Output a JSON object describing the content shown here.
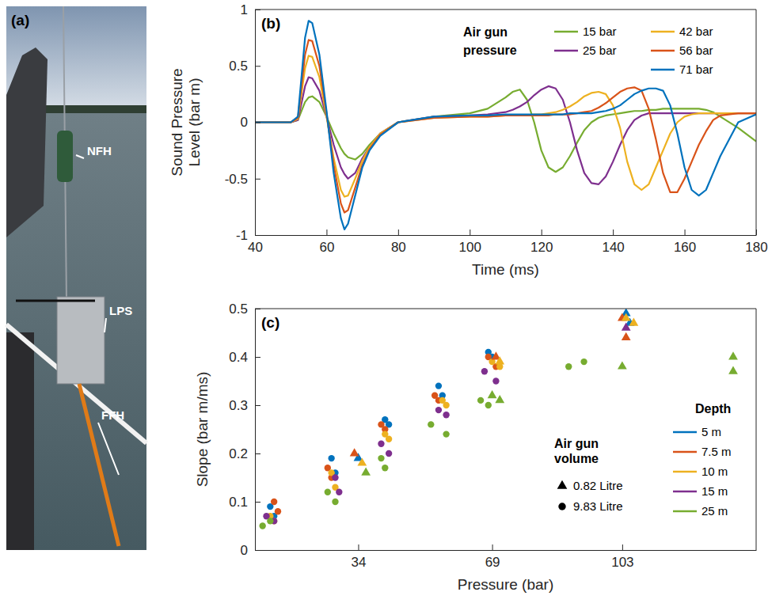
{
  "panel_a": {
    "label": "(a)",
    "annotations": [
      "NFH",
      "LPS",
      "FFH"
    ]
  },
  "chart_data": [
    {
      "type": "line",
      "panel_label": "(b)",
      "xlabel": "Time (ms)",
      "ylabel": "Sound Pressure Level (bar m)",
      "xlim": [
        40,
        180
      ],
      "xticks": [
        40,
        60,
        80,
        100,
        120,
        140,
        160,
        180
      ],
      "ylim": [
        -1,
        1
      ],
      "yticks": [
        -1,
        -0.5,
        0,
        0.5,
        1
      ],
      "grid": false,
      "legend": "top-right",
      "legend_title": "Air gun pressure",
      "x": [
        40,
        50,
        52,
        54,
        55,
        56,
        58,
        60,
        62,
        64,
        65,
        66,
        68,
        70,
        72,
        75,
        80,
        90,
        100,
        105,
        110,
        112,
        114,
        116,
        118,
        120,
        122,
        124,
        126,
        128,
        130,
        132,
        134,
        136,
        138,
        140,
        142,
        144,
        146,
        148,
        150,
        152,
        154,
        156,
        158,
        160,
        162,
        164,
        166,
        168,
        170,
        175,
        180
      ],
      "series": [
        {
          "name": "15 bar",
          "color": "#77AC30",
          "values": [
            0,
            0,
            0.02,
            0.18,
            0.22,
            0.23,
            0.18,
            0.05,
            -0.1,
            -0.23,
            -0.28,
            -0.31,
            -0.33,
            -0.28,
            -0.2,
            -0.1,
            0,
            0.05,
            0.08,
            0.12,
            0.22,
            0.27,
            0.29,
            0.2,
            0,
            -0.25,
            -0.4,
            -0.44,
            -0.4,
            -0.3,
            -0.18,
            -0.07,
            0,
            0.04,
            0.06,
            0.07,
            0.08,
            0.09,
            0.1,
            0.1,
            0.11,
            0.11,
            0.12,
            0.12,
            0.12,
            0.12,
            0.12,
            0.12,
            0.11,
            0.09,
            0.05,
            -0.05,
            -0.17
          ]
        },
        {
          "name": "25 bar",
          "color": "#7E2F8E",
          "values": [
            0,
            0,
            0.02,
            0.32,
            0.4,
            0.39,
            0.28,
            0.05,
            -0.2,
            -0.4,
            -0.46,
            -0.5,
            -0.45,
            -0.32,
            -0.22,
            -0.1,
            0,
            0.05,
            0.06,
            0.07,
            0.09,
            0.11,
            0.14,
            0.18,
            0.24,
            0.29,
            0.32,
            0.3,
            0.2,
            0,
            -0.25,
            -0.45,
            -0.54,
            -0.55,
            -0.48,
            -0.35,
            -0.2,
            -0.07,
            0.02,
            0.06,
            0.08,
            0.08,
            0.08,
            0.08,
            0.08,
            0.08,
            0.08,
            0.08,
            0.08,
            0.08,
            0.08,
            0.08,
            0.08
          ]
        },
        {
          "name": "42 bar",
          "color": "#EDB120",
          "values": [
            0,
            0,
            0.03,
            0.48,
            0.59,
            0.58,
            0.4,
            0.05,
            -0.32,
            -0.6,
            -0.66,
            -0.65,
            -0.5,
            -0.34,
            -0.22,
            -0.1,
            0,
            0.04,
            0.05,
            0.05,
            0.06,
            0.06,
            0.06,
            0.06,
            0.07,
            0.07,
            0.08,
            0.09,
            0.11,
            0.14,
            0.18,
            0.23,
            0.26,
            0.27,
            0.25,
            0.15,
            -0.05,
            -0.35,
            -0.55,
            -0.6,
            -0.55,
            -0.4,
            -0.25,
            -0.1,
            0,
            0.05,
            0.07,
            0.08,
            0.08,
            0.08,
            0.08,
            0.08,
            0.08
          ]
        },
        {
          "name": "56 bar",
          "color": "#D95319",
          "values": [
            0,
            0,
            0.04,
            0.6,
            0.73,
            0.72,
            0.5,
            0.08,
            -0.38,
            -0.72,
            -0.8,
            -0.78,
            -0.58,
            -0.38,
            -0.24,
            -0.11,
            0,
            0.04,
            0.05,
            0.05,
            0.06,
            0.06,
            0.06,
            0.06,
            0.06,
            0.06,
            0.06,
            0.07,
            0.07,
            0.07,
            0.08,
            0.09,
            0.1,
            0.13,
            0.17,
            0.22,
            0.27,
            0.3,
            0.31,
            0.28,
            0.12,
            -0.15,
            -0.45,
            -0.62,
            -0.62,
            -0.5,
            -0.35,
            -0.2,
            -0.08,
            0.02,
            0.06,
            0.08,
            0.08
          ]
        },
        {
          "name": "71 bar",
          "color": "#0072BD",
          "values": [
            0,
            0,
            0.05,
            0.75,
            0.9,
            0.88,
            0.6,
            0.1,
            -0.45,
            -0.85,
            -0.95,
            -0.9,
            -0.65,
            -0.4,
            -0.25,
            -0.12,
            0,
            0.05,
            0.06,
            0.06,
            0.07,
            0.07,
            0.07,
            0.07,
            0.07,
            0.07,
            0.07,
            0.07,
            0.07,
            0.08,
            0.08,
            0.08,
            0.08,
            0.09,
            0.1,
            0.12,
            0.15,
            0.2,
            0.25,
            0.28,
            0.3,
            0.3,
            0.28,
            0.15,
            -0.1,
            -0.4,
            -0.6,
            -0.65,
            -0.6,
            -0.45,
            -0.3,
            0,
            0.07
          ]
        }
      ]
    },
    {
      "type": "scatter",
      "panel_label": "(c)",
      "xlabel": "Pressure (bar)",
      "ylabel": "Slope (bar m/ms)",
      "xlim": [
        7,
        138
      ],
      "xticks": [
        34,
        69,
        103
      ],
      "ylim": [
        0,
        0.5
      ],
      "yticks": [
        0,
        0.1,
        0.2,
        0.3,
        0.4,
        0.5
      ],
      "grid": false,
      "legend": "bottom-right",
      "legend_title": "Depth",
      "marker_legend_title": "Air gun volume",
      "marker_legend": [
        {
          "name": "0.82 Litre",
          "marker": "triangle"
        },
        {
          "name": "9.83 Litre",
          "marker": "circle"
        }
      ],
      "series": [
        {
          "name": "5 m",
          "color": "#0072BD",
          "marker": "circle",
          "x": [
            11,
            12,
            27,
            28,
            41,
            42,
            55,
            56,
            68,
            69
          ],
          "values": [
            0.09,
            0.07,
            0.19,
            0.16,
            0.27,
            0.26,
            0.34,
            0.32,
            0.41,
            0.4
          ]
        },
        {
          "name": "7.5 m",
          "color": "#D95319",
          "marker": "circle",
          "x": [
            12,
            13,
            26,
            27,
            40,
            41,
            54,
            55,
            68,
            70
          ],
          "values": [
            0.1,
            0.08,
            0.17,
            0.15,
            0.26,
            0.25,
            0.32,
            0.31,
            0.4,
            0.38
          ]
        },
        {
          "name": "10 m",
          "color": "#EDB120",
          "marker": "circle",
          "x": [
            11,
            12,
            27,
            28,
            41,
            42,
            56,
            57,
            69,
            71
          ],
          "values": [
            0.07,
            0.06,
            0.16,
            0.13,
            0.24,
            0.23,
            0.31,
            0.3,
            0.39,
            0.38
          ]
        },
        {
          "name": "15 m",
          "color": "#7E2F8E",
          "marker": "circle",
          "x": [
            10,
            12,
            28,
            29,
            40,
            42,
            55,
            57,
            67,
            70
          ],
          "values": [
            0.07,
            0.06,
            0.15,
            0.12,
            0.22,
            0.2,
            0.29,
            0.28,
            0.37,
            0.35
          ]
        },
        {
          "name": "25 m",
          "color": "#77AC30",
          "marker": "circle",
          "x": [
            9,
            11,
            26,
            28,
            40,
            41,
            53,
            57,
            66,
            68,
            89,
            93
          ],
          "values": [
            0.05,
            0.06,
            0.12,
            0.1,
            0.19,
            0.17,
            0.26,
            0.24,
            0.31,
            0.3,
            0.38,
            0.39
          ]
        },
        {
          "name": "5 m",
          "color": "#0072BD",
          "marker": "triangle",
          "x": [
            34,
            104,
            105
          ],
          "values": [
            0.19,
            0.49,
            0.47
          ]
        },
        {
          "name": "7.5 m",
          "color": "#D95319",
          "marker": "triangle",
          "x": [
            33,
            70,
            103,
            104
          ],
          "values": [
            0.2,
            0.4,
            0.48,
            0.44
          ]
        },
        {
          "name": "10 m",
          "color": "#EDB120",
          "marker": "triangle",
          "x": [
            35,
            71,
            104,
            106
          ],
          "values": [
            0.18,
            0.39,
            0.48,
            0.47
          ]
        },
        {
          "name": "15 m",
          "color": "#7E2F8E",
          "marker": "triangle",
          "x": [
            104
          ],
          "values": [
            0.46
          ]
        },
        {
          "name": "25 m",
          "color": "#77AC30",
          "marker": "triangle",
          "x": [
            36,
            69,
            71,
            103,
            132,
            132
          ],
          "values": [
            0.16,
            0.32,
            0.31,
            0.38,
            0.4,
            0.37
          ]
        }
      ]
    }
  ]
}
